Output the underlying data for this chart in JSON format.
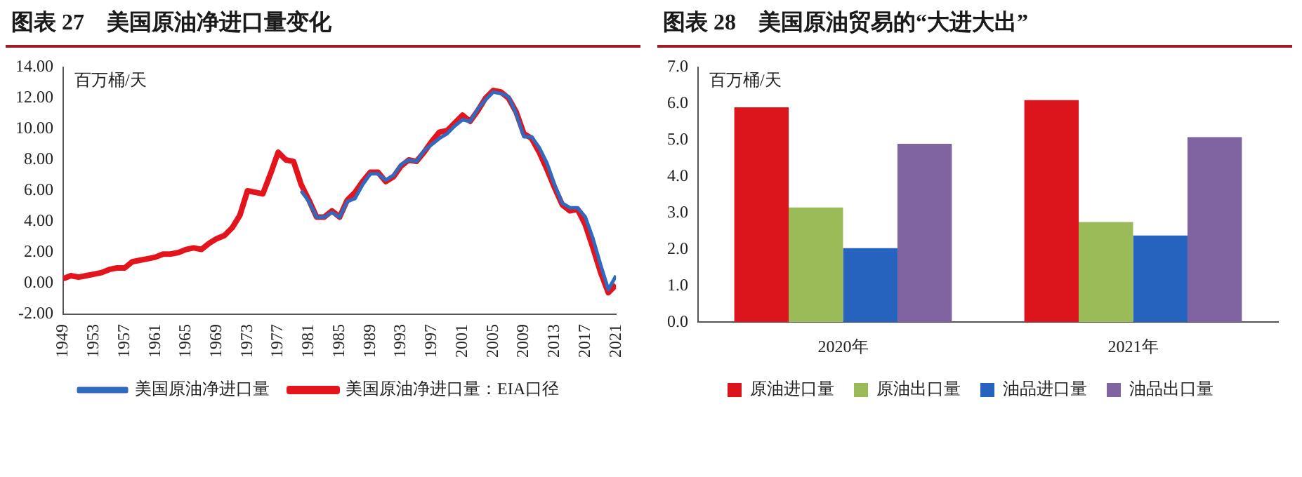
{
  "chart_data": [
    {
      "type": "line",
      "title": "图表 27　美国原油净进口量变化",
      "ylabel": "百万桶/天",
      "xlim": [
        1949,
        2021
      ],
      "xticks": [
        1949,
        1953,
        1957,
        1961,
        1965,
        1969,
        1973,
        1977,
        1981,
        1985,
        1989,
        1993,
        1997,
        2001,
        2005,
        2009,
        2013,
        2017,
        2021
      ],
      "ylim": [
        -2,
        14
      ],
      "yticks": [
        {
          "value": -2,
          "label": "-2.00"
        },
        {
          "value": 0,
          "label": "0.00"
        },
        {
          "value": 2,
          "label": "2.00"
        },
        {
          "value": 4,
          "label": "4.00"
        },
        {
          "value": 6,
          "label": "6.00"
        },
        {
          "value": 8,
          "label": "8.00"
        },
        {
          "value": 10,
          "label": "10.00"
        },
        {
          "value": 12,
          "label": "12.00"
        },
        {
          "value": 14,
          "label": "14.00"
        }
      ],
      "grid": false,
      "legend": "bottom",
      "marker": "none",
      "line_style": "solid",
      "series": [
        {
          "name": "美国原油净进口量：EIA口径",
          "color": "#e3141c",
          "x": [
            1949,
            1950,
            1951,
            1952,
            1953,
            1954,
            1955,
            1956,
            1957,
            1958,
            1959,
            1960,
            1961,
            1962,
            1963,
            1964,
            1965,
            1966,
            1967,
            1968,
            1969,
            1970,
            1971,
            1972,
            1973,
            1974,
            1975,
            1976,
            1977,
            1978,
            1979,
            1980,
            1981,
            1982,
            1983,
            1984,
            1985,
            1986,
            1987,
            1988,
            1989,
            1990,
            1991,
            1992,
            1993,
            1994,
            1995,
            1996,
            1997,
            1998,
            1999,
            2000,
            2001,
            2002,
            2003,
            2004,
            2005,
            2006,
            2007,
            2008,
            2009,
            2010,
            2011,
            2012,
            2013,
            2014,
            2015,
            2016,
            2017,
            2018,
            2019,
            2020,
            2021
          ],
          "values": [
            0.3,
            0.5,
            0.4,
            0.5,
            0.6,
            0.7,
            0.9,
            1.0,
            1.0,
            1.4,
            1.5,
            1.6,
            1.7,
            1.9,
            1.9,
            2.0,
            2.2,
            2.3,
            2.2,
            2.6,
            2.9,
            3.1,
            3.6,
            4.4,
            6.0,
            5.9,
            5.8,
            7.1,
            8.5,
            8.0,
            7.9,
            6.4,
            5.4,
            4.3,
            4.3,
            4.7,
            4.3,
            5.4,
            5.9,
            6.6,
            7.2,
            7.2,
            6.6,
            6.9,
            7.6,
            8.0,
            7.9,
            8.5,
            9.2,
            9.8,
            9.9,
            10.4,
            10.9,
            10.5,
            11.2,
            12.0,
            12.5,
            12.4,
            12.0,
            11.1,
            9.7,
            9.4,
            8.5,
            7.4,
            6.2,
            5.1,
            4.7,
            4.8,
            3.8,
            2.3,
            0.7,
            -0.6,
            -0.1
          ]
        },
        {
          "name": "美国原油净进口量",
          "color": "#2e6bc0",
          "x": [
            1980,
            1981,
            1982,
            1983,
            1984,
            1985,
            1986,
            1987,
            1988,
            1989,
            1990,
            1991,
            1992,
            1993,
            1994,
            1995,
            1996,
            1997,
            1998,
            1999,
            2000,
            2001,
            2002,
            2003,
            2004,
            2005,
            2006,
            2007,
            2008,
            2009,
            2010,
            2011,
            2012,
            2013,
            2014,
            2015,
            2016,
            2017,
            2018,
            2019,
            2020,
            2021
          ],
          "values": [
            6.0,
            5.3,
            4.3,
            4.3,
            4.6,
            4.3,
            5.3,
            5.5,
            6.4,
            7.1,
            7.1,
            6.7,
            7.0,
            7.7,
            8.0,
            7.9,
            8.6,
            9.0,
            9.4,
            9.7,
            10.2,
            10.6,
            10.5,
            11.3,
            11.9,
            12.4,
            12.3,
            12.1,
            11.0,
            9.5,
            9.5,
            8.8,
            7.8,
            6.4,
            5.2,
            4.9,
            4.9,
            4.3,
            2.9,
            1.2,
            -0.4,
            0.5
          ]
        }
      ]
    },
    {
      "type": "bar",
      "title": "图表 28　美国原油贸易的“大进大出”",
      "ylabel": "百万桶/天",
      "categories": [
        "2020年",
        "2021年"
      ],
      "ylim": [
        0,
        7
      ],
      "yticks": [
        {
          "value": 0,
          "label": "0.0"
        },
        {
          "value": 1,
          "label": "1.0"
        },
        {
          "value": 2,
          "label": "2.0"
        },
        {
          "value": 3,
          "label": "3.0"
        },
        {
          "value": 4,
          "label": "4.0"
        },
        {
          "value": 5,
          "label": "5.0"
        },
        {
          "value": 6,
          "label": "6.0"
        },
        {
          "value": 7,
          "label": "7.0"
        }
      ],
      "grid": false,
      "legend": "bottom",
      "series": [
        {
          "name": "原油进口量",
          "color": "#dc141b",
          "values": [
            5.9,
            6.1
          ]
        },
        {
          "name": "原油出口量",
          "color": "#9bbb59",
          "values": [
            3.15,
            2.75
          ]
        },
        {
          "name": "油品进口量",
          "color": "#2563be",
          "values": [
            2.03,
            2.38
          ]
        },
        {
          "name": "油品出口量",
          "color": "#8064a2",
          "values": [
            4.9,
            5.08
          ]
        }
      ]
    }
  ]
}
